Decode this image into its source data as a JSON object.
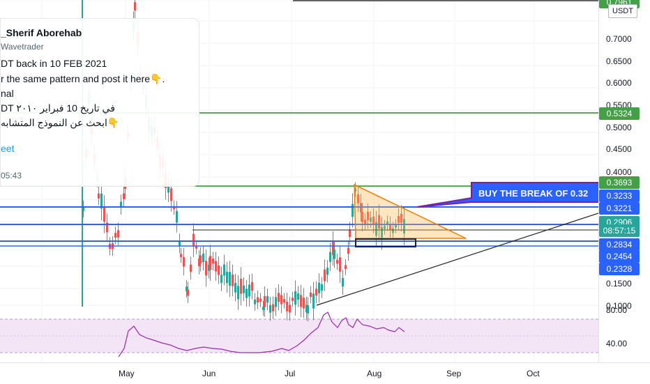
{
  "chart": {
    "symbol_currency": "USDT",
    "price_ticks": [
      "0.7000",
      "0.6500",
      "0.6000",
      "0.5500",
      "0.5000",
      "0.4500",
      "0.4000",
      "0.1500",
      "0.1000"
    ],
    "rsi_ticks": [
      "80.00",
      "40.00"
    ],
    "time_labels": [
      "May",
      "Jun",
      "Jul",
      "Aug",
      "Sep",
      "Oct"
    ],
    "price_badges": [
      {
        "label": "0.7961",
        "color": "#43a047"
      },
      {
        "label": "0.5324",
        "color": "#43a047"
      },
      {
        "label": "0.3693",
        "color": "#43a047"
      },
      {
        "label": "0.3233",
        "color": "#2962ff"
      },
      {
        "label": "0.3221",
        "color": "#2962ff"
      },
      {
        "label": "0.2906",
        "color": "#26a69a"
      },
      {
        "label": "08:57:15",
        "color": "#26a69a"
      },
      {
        "label": "0.2834",
        "color": "#2962ff"
      },
      {
        "label": "0.2454",
        "color": "#2962ff"
      },
      {
        "label": "0.2328",
        "color": "#2962ff"
      }
    ],
    "annotation": "BUY THE BREAK OF 0.32",
    "colors": {
      "up": "#26a69a",
      "down": "#ef5350",
      "green_line": "#4caf50",
      "blue_line": "#2962ff",
      "rsi": "#9c27b0",
      "callout": "#2962ff"
    }
  },
  "tweet": {
    "author": "_Sherif Aborehab",
    "handle": "Wavetrader",
    "lines": [
      "DT back in 10 FEB 2021",
      "r the same pattern and post it here👇.",
      "nal",
      "DT في تاريخ 10 فبراير ٢٠١٠",
      "ابحث عن النموذج المتشابه👇"
    ],
    "link": "eet",
    "time": "05:43"
  }
}
